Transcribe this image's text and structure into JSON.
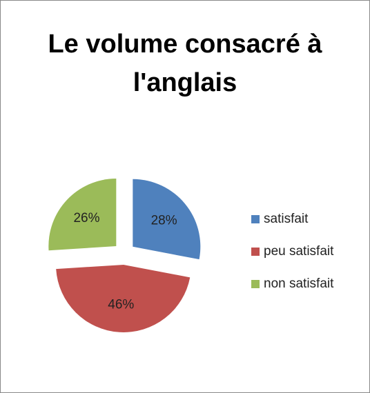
{
  "chart_data": {
    "type": "pie",
    "title": "Le volume consacré à l'anglais",
    "categories": [
      "satisfait",
      "peu satisfait",
      "non satisfait"
    ],
    "values": [
      28,
      46,
      26
    ],
    "value_labels": [
      "28%",
      "46%",
      "26%"
    ],
    "colors": [
      "#4f81bd",
      "#c0504d",
      "#9bbb59"
    ],
    "legend": "right"
  }
}
